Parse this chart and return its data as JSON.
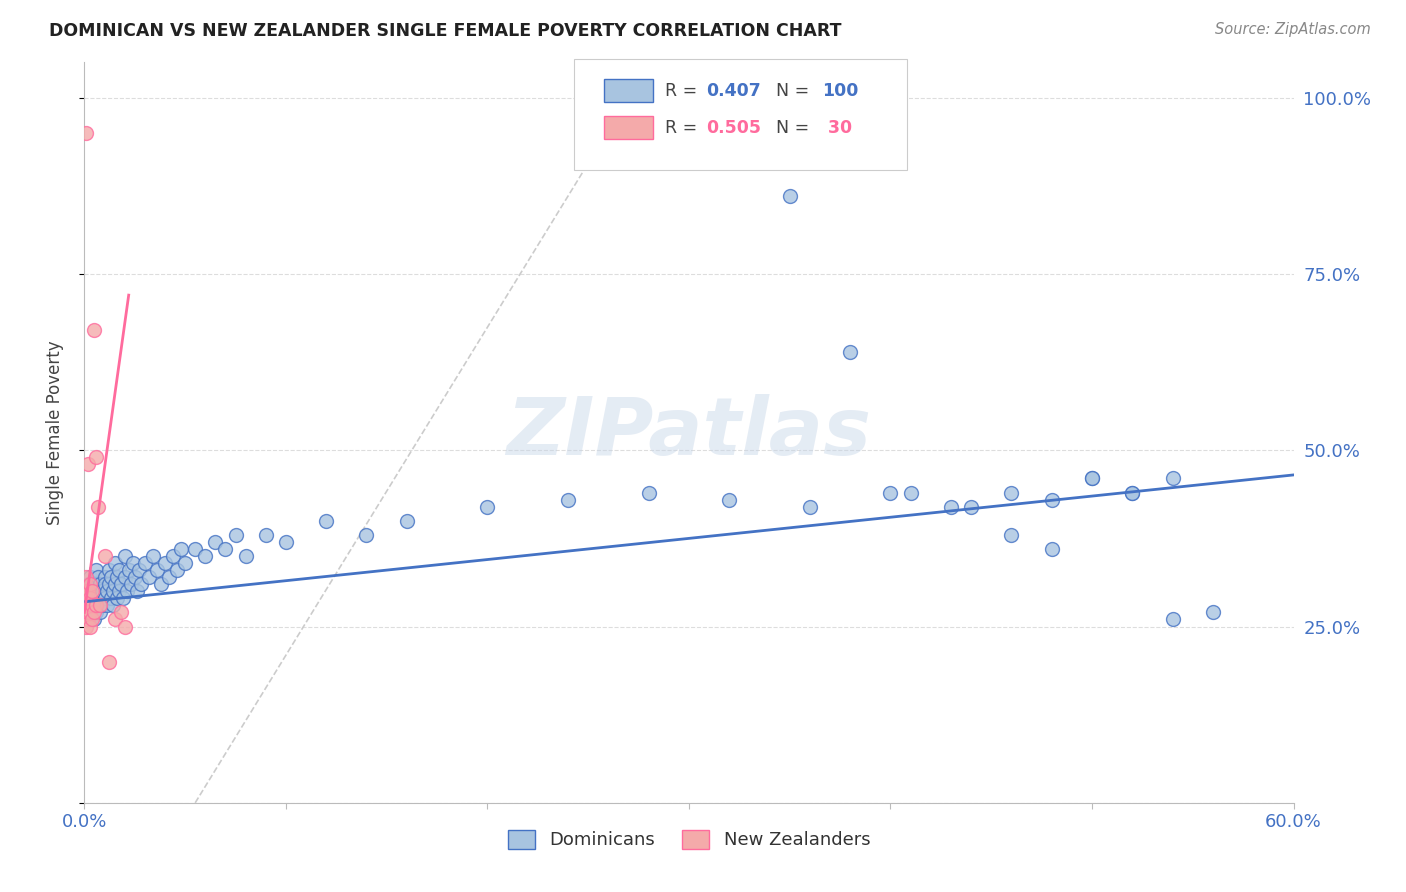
{
  "title": "DOMINICAN VS NEW ZEALANDER SINGLE FEMALE POVERTY CORRELATION CHART",
  "source": "Source: ZipAtlas.com",
  "ylabel": "Single Female Poverty",
  "right_yticks": [
    "100.0%",
    "75.0%",
    "50.0%",
    "25.0%"
  ],
  "right_ytick_vals": [
    1.0,
    0.75,
    0.5,
    0.25
  ],
  "watermark": "ZIPatlas",
  "blue_color": "#A8C4E0",
  "pink_color": "#F4AAAA",
  "line_blue": "#4472C4",
  "line_pink": "#FF6B9D",
  "line_grey": "#CCCCCC",
  "xlim": [
    0.0,
    0.6
  ],
  "ylim": [
    0.0,
    1.05
  ],
  "xticks": [
    0.0,
    0.1,
    0.2,
    0.3,
    0.4,
    0.5,
    0.6
  ],
  "yticks": [
    0.0,
    0.25,
    0.5,
    0.75,
    1.0
  ],
  "background_color": "#FFFFFF",
  "grid_color": "#DDDDDD",
  "blue_R": 0.407,
  "blue_N": 100,
  "pink_R": 0.505,
  "pink_N": 30,
  "blue_line_x0": 0.0,
  "blue_line_y0": 0.285,
  "blue_line_x1": 0.6,
  "blue_line_y1": 0.465,
  "pink_line_x0": 0.0,
  "pink_line_y0": 0.27,
  "pink_line_x1": 0.022,
  "pink_line_y1": 0.72,
  "grey_line_x0": 0.055,
  "grey_line_y0": 0.0,
  "grey_line_x1": 0.27,
  "grey_line_y1": 1.0,
  "dominicans_x": [
    0.001,
    0.001,
    0.002,
    0.002,
    0.002,
    0.003,
    0.003,
    0.003,
    0.003,
    0.004,
    0.004,
    0.004,
    0.005,
    0.005,
    0.005,
    0.006,
    0.006,
    0.006,
    0.006,
    0.007,
    0.007,
    0.007,
    0.008,
    0.008,
    0.008,
    0.009,
    0.009,
    0.01,
    0.01,
    0.01,
    0.011,
    0.011,
    0.012,
    0.012,
    0.013,
    0.013,
    0.014,
    0.014,
    0.015,
    0.015,
    0.016,
    0.016,
    0.017,
    0.017,
    0.018,
    0.019,
    0.02,
    0.02,
    0.021,
    0.022,
    0.023,
    0.024,
    0.025,
    0.026,
    0.027,
    0.028,
    0.03,
    0.032,
    0.034,
    0.036,
    0.038,
    0.04,
    0.042,
    0.044,
    0.046,
    0.048,
    0.05,
    0.055,
    0.06,
    0.065,
    0.07,
    0.075,
    0.08,
    0.09,
    0.1,
    0.12,
    0.14,
    0.16,
    0.2,
    0.24,
    0.28,
    0.32,
    0.36,
    0.4,
    0.43,
    0.46,
    0.48,
    0.5,
    0.52,
    0.54,
    0.35,
    0.38,
    0.41,
    0.44,
    0.46,
    0.48,
    0.5,
    0.52,
    0.54,
    0.56
  ],
  "dominicans_y": [
    0.28,
    0.3,
    0.27,
    0.29,
    0.31,
    0.26,
    0.28,
    0.3,
    0.32,
    0.27,
    0.29,
    0.31,
    0.28,
    0.3,
    0.26,
    0.29,
    0.31,
    0.27,
    0.33,
    0.28,
    0.3,
    0.32,
    0.29,
    0.31,
    0.27,
    0.3,
    0.28,
    0.32,
    0.29,
    0.31,
    0.3,
    0.28,
    0.33,
    0.31,
    0.29,
    0.32,
    0.3,
    0.28,
    0.34,
    0.31,
    0.29,
    0.32,
    0.3,
    0.33,
    0.31,
    0.29,
    0.35,
    0.32,
    0.3,
    0.33,
    0.31,
    0.34,
    0.32,
    0.3,
    0.33,
    0.31,
    0.34,
    0.32,
    0.35,
    0.33,
    0.31,
    0.34,
    0.32,
    0.35,
    0.33,
    0.36,
    0.34,
    0.36,
    0.35,
    0.37,
    0.36,
    0.38,
    0.35,
    0.38,
    0.37,
    0.4,
    0.38,
    0.4,
    0.42,
    0.43,
    0.44,
    0.43,
    0.42,
    0.44,
    0.42,
    0.44,
    0.43,
    0.46,
    0.44,
    0.46,
    0.86,
    0.64,
    0.44,
    0.42,
    0.38,
    0.36,
    0.46,
    0.44,
    0.26,
    0.27
  ],
  "new_zealanders_x": [
    0.001,
    0.001,
    0.001,
    0.001,
    0.001,
    0.001,
    0.001,
    0.002,
    0.002,
    0.002,
    0.002,
    0.002,
    0.003,
    0.003,
    0.003,
    0.003,
    0.004,
    0.004,
    0.004,
    0.005,
    0.005,
    0.006,
    0.006,
    0.007,
    0.008,
    0.01,
    0.012,
    0.015,
    0.018,
    0.02
  ],
  "new_zealanders_y": [
    0.28,
    0.3,
    0.32,
    0.26,
    0.25,
    0.27,
    0.95,
    0.28,
    0.48,
    0.3,
    0.26,
    0.27,
    0.29,
    0.27,
    0.31,
    0.25,
    0.28,
    0.26,
    0.3,
    0.67,
    0.27,
    0.49,
    0.28,
    0.42,
    0.28,
    0.35,
    0.2,
    0.26,
    0.27,
    0.25
  ]
}
